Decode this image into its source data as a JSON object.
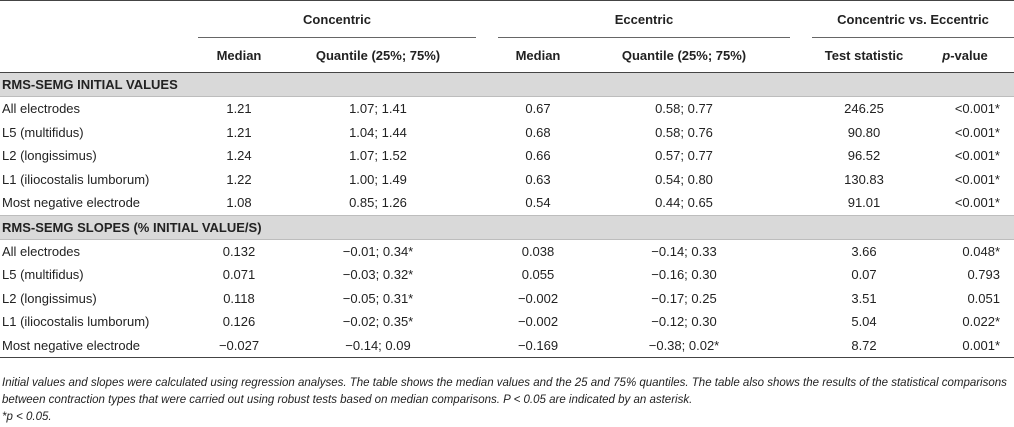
{
  "headers": {
    "groups": [
      "Concentric",
      "Eccentric",
      "Concentric vs. Eccentric"
    ],
    "cols": [
      "Median",
      "Quantile (25%; 75%)",
      "Median",
      "Quantile (25%; 75%)",
      "Test statistic"
    ],
    "pvalue_italic": "p",
    "pvalue_rest": "-value"
  },
  "sections": [
    {
      "title": "RMS-SEMG INITIAL VALUES",
      "rows": [
        {
          "name": "All electrodes",
          "c_med": "1.21",
          "c_q": "1.07; 1.41",
          "e_med": "0.67",
          "e_q": "0.58; 0.77",
          "ts": "246.25",
          "p": "<0.001*"
        },
        {
          "name": "L5 (multifidus)",
          "c_med": "1.21",
          "c_q": "1.04; 1.44",
          "e_med": "0.68",
          "e_q": "0.58; 0.76",
          "ts": "90.80",
          "p": "<0.001*"
        },
        {
          "name": "L2 (longissimus)",
          "c_med": "1.24",
          "c_q": "1.07; 1.52",
          "e_med": "0.66",
          "e_q": "0.57; 0.77",
          "ts": "96.52",
          "p": "<0.001*"
        },
        {
          "name": "L1 (iliocostalis lumborum)",
          "c_med": "1.22",
          "c_q": "1.00; 1.49",
          "e_med": "0.63",
          "e_q": "0.54; 0.80",
          "ts": "130.83",
          "p": "<0.001*"
        },
        {
          "name": "Most negative electrode",
          "c_med": "1.08",
          "c_q": "0.85; 1.26",
          "e_med": "0.54",
          "e_q": "0.44; 0.65",
          "ts": "91.01",
          "p": "<0.001*"
        }
      ]
    },
    {
      "title": "RMS-SEMG SLOPES (% INITIAL VALUE/S)",
      "rows": [
        {
          "name": "All electrodes",
          "c_med": "0.132",
          "c_q": "−0.01; 0.34*",
          "e_med": "0.038",
          "e_q": "−0.14; 0.33",
          "ts": "3.66",
          "p": "0.048*"
        },
        {
          "name": "L5 (multifidus)",
          "c_med": "0.071",
          "c_q": "−0.03; 0.32*",
          "e_med": "0.055",
          "e_q": "−0.16; 0.30",
          "ts": "0.07",
          "p": "0.793"
        },
        {
          "name": "L2 (longissimus)",
          "c_med": "0.118",
          "c_q": "−0.05; 0.31*",
          "e_med": "−0.002",
          "e_q": "−0.17; 0.25",
          "ts": "3.51",
          "p": "0.051"
        },
        {
          "name": "L1 (iliocostalis lumborum)",
          "c_med": "0.126",
          "c_q": "−0.02; 0.35*",
          "e_med": "−0.002",
          "e_q": "−0.12; 0.30",
          "ts": "5.04",
          "p": "0.022*"
        },
        {
          "name": "Most negative electrode",
          "c_med": "−0.027",
          "c_q": "−0.14; 0.09",
          "e_med": "−0.169",
          "e_q": "−0.38; 0.02*",
          "ts": "8.72",
          "p": "0.001*"
        }
      ]
    }
  ],
  "footnote": {
    "text": "Initial values and slopes were calculated using regression analyses. The table shows the median values and the 25 and 75% quantiles. The table also shows the results of the statistical comparisons between contraction types that were carried out using robust tests based on median comparisons. P < 0.05 are indicated by an asterisk.",
    "star": "*p < 0.05."
  }
}
